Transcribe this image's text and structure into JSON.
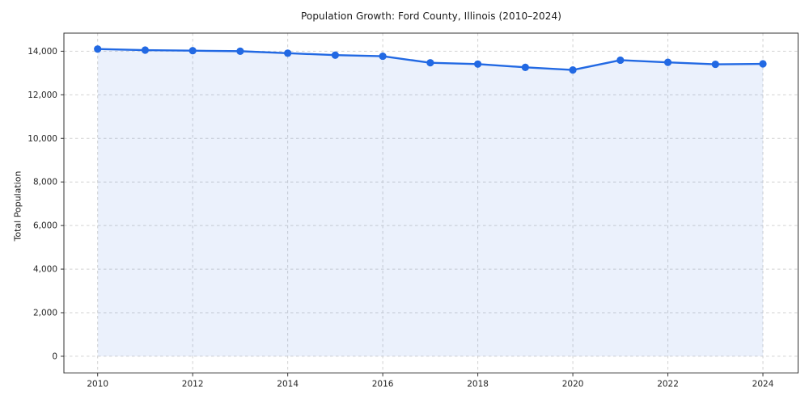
{
  "figure": {
    "background": "#ffffff"
  },
  "chart_data": {
    "type": "line",
    "title": "Population Growth: Ford County, Illinois (2010–2024)",
    "xlabel": "",
    "ylabel": "Total Population",
    "x": [
      2010,
      2011,
      2012,
      2013,
      2014,
      2015,
      2016,
      2017,
      2018,
      2019,
      2020,
      2021,
      2022,
      2023,
      2024
    ],
    "series": [
      {
        "name": "Total Population",
        "values": [
          14100,
          14050,
          14025,
          14000,
          13910,
          13820,
          13770,
          13470,
          13410,
          13260,
          13140,
          13590,
          13490,
          13400,
          13420
        ]
      }
    ],
    "xlim": [
      2009.29,
      2024.74
    ],
    "ylim": [
      -770,
      14830
    ],
    "yticks": {
      "values": [
        0,
        2000,
        4000,
        6000,
        8000,
        10000,
        12000,
        14000
      ],
      "labels": [
        "0",
        "2,000",
        "4,000",
        "6,000",
        "8,000",
        "10,000",
        "12,000",
        "14,000"
      ]
    },
    "xticks": {
      "values": [
        2010,
        2012,
        2014,
        2016,
        2018,
        2020,
        2022,
        2024
      ],
      "labels": [
        "2010",
        "2012",
        "2014",
        "2016",
        "2018",
        "2020",
        "2022",
        "2024"
      ]
    },
    "legend": {
      "show": false
    },
    "grid": {
      "show": true,
      "color": "#cdcdcd",
      "dash": "3.5 3.5",
      "opacity": 0.9
    },
    "style": {
      "line_color": "#2269e3",
      "marker_color": "#2269e3",
      "fill_color": "#2269e3",
      "fill_opacity": 0.09,
      "line_width": 2.4,
      "marker_radius": 4.6,
      "spine_color": "#333333",
      "tick_color": "#333333",
      "tick_label_color": "#262626",
      "title_color": "#1a1a1a",
      "tick_font_size": 10.5
    }
  }
}
